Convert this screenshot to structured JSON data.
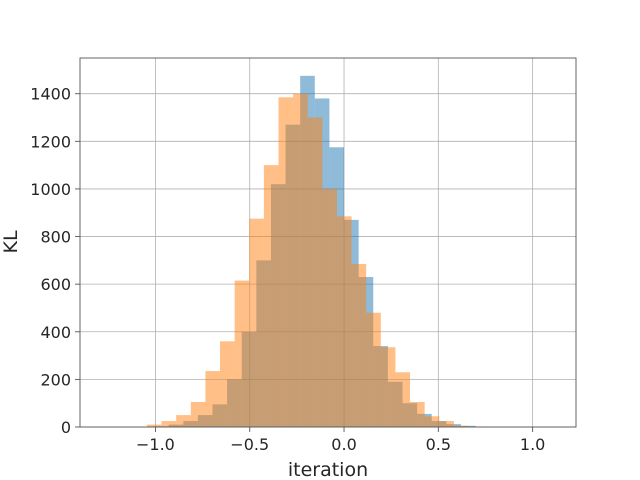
{
  "chart_data": {
    "type": "bar",
    "title": "",
    "xlabel": "iteration",
    "ylabel": "KL",
    "xlim": [
      -1.4,
      1.23
    ],
    "ylim": [
      0,
      1550
    ],
    "xticks": [
      -1.0,
      -0.5,
      0.0,
      0.5,
      1.0
    ],
    "xtick_labels": [
      "−1.0",
      "−0.5",
      "0.0",
      "0.5",
      "1.0"
    ],
    "yticks": [
      0,
      200,
      400,
      600,
      800,
      1000,
      1200,
      1400
    ],
    "ytick_labels": [
      "0",
      "200",
      "400",
      "600",
      "800",
      "1000",
      "1200",
      "1400"
    ],
    "grid": true,
    "legend": "none",
    "bin_width": 0.0775,
    "series": [
      {
        "color": "#1f77b4",
        "opacity": 0.5,
        "bin_start": -1.24,
        "values": [
          1,
          0,
          1,
          3,
          10,
          25,
          50,
          95,
          200,
          400,
          700,
          1020,
          1270,
          1475,
          1380,
          1175,
          870,
          630,
          340,
          190,
          100,
          55,
          25,
          12,
          5,
          2
        ]
      },
      {
        "color": "#ff7f0e",
        "opacity": 0.5,
        "bin_start": -1.045,
        "values": [
          10,
          25,
          50,
          105,
          235,
          360,
          615,
          875,
          1100,
          1385,
          1400,
          1300,
          1000,
          885,
          685,
          480,
          335,
          230,
          105,
          45,
          25,
          5
        ]
      }
    ]
  }
}
